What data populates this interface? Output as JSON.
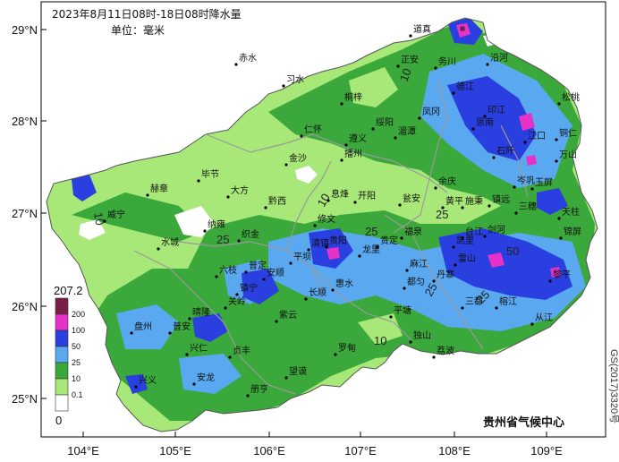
{
  "title": {
    "line1": "2023年8月11日08时-18日08时降水量",
    "line2": "单位：毫米"
  },
  "axes": {
    "lat_labels": [
      "29°N",
      "28°N",
      "27°N",
      "26°N",
      "25°N"
    ],
    "lon_labels": [
      "104°E",
      "105°E",
      "106°E",
      "107°E",
      "108°E",
      "109°E"
    ]
  },
  "legend": {
    "max_label": "207.2",
    "min_label": "0",
    "classes": [
      {
        "label": "200",
        "color": "#7a1f4a"
      },
      {
        "label": "100",
        "color": "#e632c8"
      },
      {
        "label": "50",
        "color": "#2a3fe0"
      },
      {
        "label": "25",
        "color": "#5aa8f0"
      },
      {
        "label": "10",
        "color": "#3aa83a"
      },
      {
        "label": "0.1",
        "color": "#a8e878"
      },
      {
        "label": "",
        "color": "#ffffff"
      }
    ]
  },
  "contour_labels": [
    "10",
    "10",
    "10",
    "25",
    "25",
    "25",
    "25",
    "50",
    "25",
    "10"
  ],
  "cities": [
    "道真",
    "正安",
    "务川",
    "沿河",
    "赤水",
    "习水",
    "桐梓",
    "绥阳",
    "凤冈",
    "德江",
    "印江",
    "松桃",
    "仁怀",
    "遵义",
    "湄潭",
    "思南",
    "江口",
    "铜仁",
    "万山",
    "金沙",
    "播州",
    "余庆",
    "石阡",
    "毕节",
    "大方",
    "黔西",
    "息烽",
    "开阳",
    "瓮安",
    "施秉",
    "镇远",
    "岑巩",
    "玉屏",
    "赫章",
    "威宁",
    "纳雍",
    "织金",
    "修文",
    "贵阳",
    "福泉",
    "黄平",
    "剑河",
    "三穗",
    "天柱",
    "锦屏",
    "水城",
    "六枝",
    "普定",
    "平坝",
    "清镇",
    "龙里",
    "贵定",
    "麻江",
    "凯里",
    "台江",
    "雷山",
    "黎平",
    "盘州",
    "晴隆",
    "关岭",
    "镇宁",
    "安顺",
    "长顺",
    "惠水",
    "都匀",
    "丹寨",
    "榕江",
    "从江",
    "普安",
    "兴仁",
    "贞丰",
    "紫云",
    "罗甸",
    "平塘",
    "独山",
    "三都",
    "荔波",
    "兴义",
    "安龙",
    "册亨",
    "望谟"
  ],
  "credit": "贵州省气候中心",
  "side_code": "GS(2017)3320号",
  "colors": {
    "frame": "#000000",
    "border_gray": "#9a9a9a"
  }
}
